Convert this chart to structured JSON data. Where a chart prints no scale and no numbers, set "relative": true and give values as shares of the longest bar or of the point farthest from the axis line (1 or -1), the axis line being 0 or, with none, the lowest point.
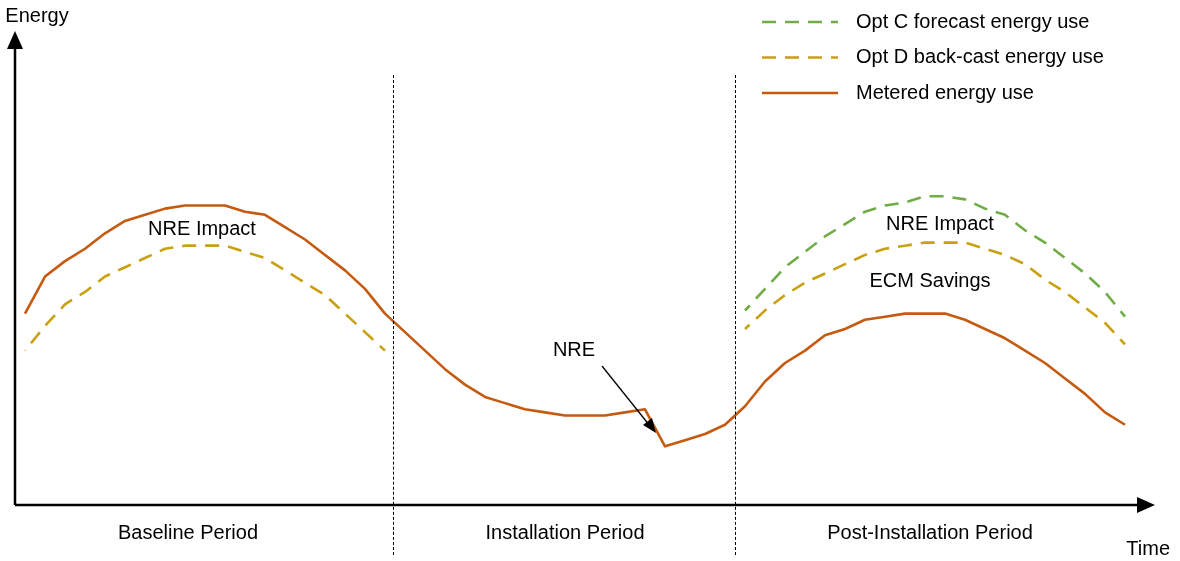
{
  "chart_data": {
    "type": "line",
    "relative": true,
    "xlabel": "Time",
    "legend": "top right",
    "marker": "none",
    "categories": [
      null,
      null,
      null,
      null,
      null,
      null,
      null,
      null,
      null,
      null,
      null,
      null,
      null,
      null,
      null,
      null,
      null,
      null,
      null,
      null,
      null,
      null,
      null,
      null,
      null,
      null,
      null,
      null,
      null,
      null,
      null,
      null,
      null,
      null,
      null,
      null,
      null,
      null,
      null,
      null,
      null,
      null,
      null,
      null,
      null,
      null,
      null,
      null,
      null,
      null,
      null,
      null,
      null,
      null,
      null,
      null
    ],
    "series": [
      {
        "name": "Opt C forecast energy use",
        "color": "#70ad47",
        "line_style": "dashed",
        "values": [
          null,
          null,
          null,
          null,
          null,
          null,
          null,
          null,
          null,
          null,
          null,
          null,
          null,
          null,
          null,
          null,
          null,
          null,
          null,
          null,
          null,
          null,
          null,
          null,
          null,
          null,
          null,
          null,
          null,
          null,
          null,
          null,
          null,
          null,
          null,
          null,
          0.63,
          0.7,
          0.77,
          0.82,
          0.87,
          0.91,
          0.95,
          0.97,
          0.98,
          1.0,
          1.0,
          0.99,
          0.96,
          0.94,
          0.89,
          0.85,
          0.8,
          0.75,
          0.69,
          0.61
        ]
      },
      {
        "name": "Opt D back-cast energy use",
        "color": "#c9a010",
        "line_style": "dashed",
        "values": [
          null,
          null,
          null,
          null,
          null,
          null,
          null,
          null,
          null,
          null,
          null,
          null,
          null,
          null,
          null,
          null,
          null,
          null,
          null,
          null,
          null,
          null,
          null,
          null,
          null,
          null,
          null,
          null,
          null,
          null,
          null,
          null,
          null,
          null,
          null,
          null,
          0.57,
          0.63,
          0.68,
          0.72,
          0.75,
          0.78,
          0.81,
          0.83,
          0.84,
          0.85,
          0.85,
          0.85,
          0.83,
          0.81,
          0.78,
          0.73,
          0.69,
          0.64,
          0.59,
          0.52
        ]
      },
      {
        "name": "Metered energy use",
        "color": "#c55a11",
        "line_style": "solid",
        "values": [
          0.62,
          0.74,
          0.79,
          0.83,
          0.88,
          0.92,
          0.94,
          0.96,
          0.97,
          0.97,
          0.97,
          0.95,
          0.94,
          0.9,
          0.86,
          0.81,
          0.76,
          0.7,
          0.62,
          0.56,
          0.5,
          0.44,
          0.39,
          0.35,
          0.33,
          0.31,
          0.3,
          0.29,
          0.29,
          0.29,
          0.3,
          0.31,
          0.19,
          0.21,
          0.23,
          0.26,
          0.32,
          0.4,
          0.46,
          0.5,
          0.55,
          0.57,
          0.6,
          0.61,
          0.62,
          0.62,
          0.62,
          0.6,
          0.57,
          0.54,
          0.5,
          0.46,
          0.41,
          0.36,
          0.3,
          0.26
        ]
      },
      {
        "color": "#c9a010",
        "line_style": "dashed",
        "values": [
          0.5,
          0.58,
          0.65,
          0.69,
          0.74,
          0.77,
          0.8,
          0.83,
          0.84,
          0.84,
          0.84,
          0.82,
          0.8,
          0.76,
          0.72,
          0.68,
          0.62,
          0.56,
          0.5,
          null,
          null,
          null,
          null,
          null,
          null,
          null,
          null,
          null,
          null,
          null,
          null,
          null,
          null,
          null,
          null,
          null,
          null,
          null,
          null,
          null,
          null,
          null,
          null,
          null,
          null,
          null,
          null,
          null,
          null,
          null,
          null,
          null,
          null,
          null,
          null,
          null
        ]
      }
    ],
    "annotations": [
      "NRE Impact",
      "NRE Impact",
      "ECM Savings",
      "NRE",
      "Baseline Period",
      "Installation Period",
      "Post-Installation Period",
      "Energy"
    ]
  }
}
